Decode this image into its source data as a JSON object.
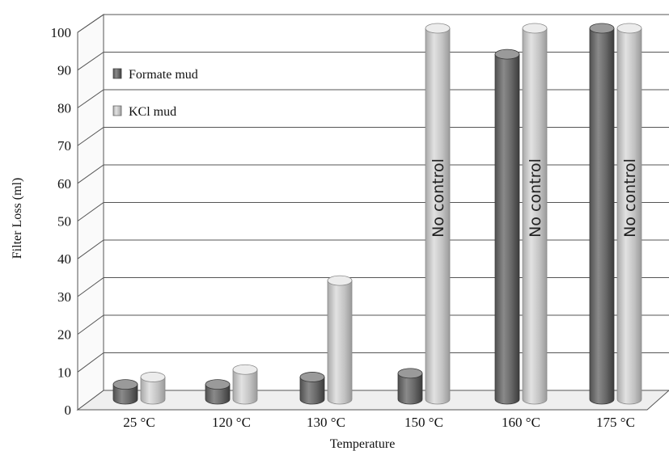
{
  "chart_data": {
    "type": "bar",
    "style": "3d-cylinder",
    "xlabel": "Temperature",
    "ylabel": "Filter Loss (ml)",
    "ylim": [
      0,
      100
    ],
    "yticks": [
      "0",
      "10",
      "20",
      "30",
      "40",
      "50",
      "60",
      "70",
      "80",
      "90",
      "100"
    ],
    "categories": [
      "25 °C",
      "120 °C",
      "130 °C",
      "150 °C",
      "160 °C",
      "175 °C"
    ],
    "series": [
      {
        "name": "Formate mud",
        "color": "#6b6b6b",
        "values": [
          4,
          4,
          6,
          7,
          93,
          100
        ]
      },
      {
        "name": "KCl mud",
        "color": "#bdbdbd",
        "values": [
          6,
          8,
          32,
          100,
          100,
          100
        ]
      }
    ],
    "annotations": [
      {
        "category": "150 °C",
        "series": "KCl mud",
        "text": "No control"
      },
      {
        "category": "160 °C",
        "series": "KCl mud",
        "text": "No control"
      },
      {
        "category": "175 °C",
        "series": "KCl mud",
        "text": "No control"
      }
    ],
    "legend": "top-left",
    "grid": true
  }
}
